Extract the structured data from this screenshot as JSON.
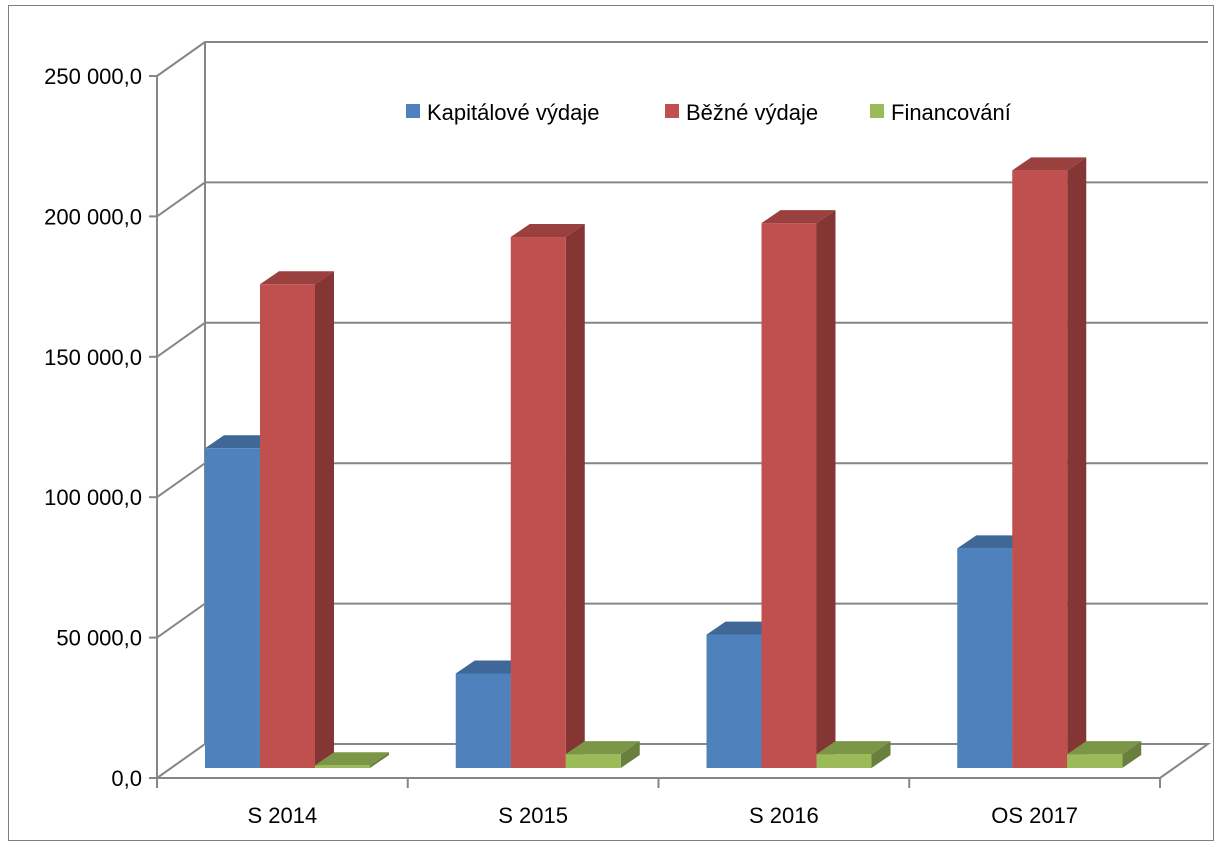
{
  "chart_data": {
    "type": "bar",
    "categories": [
      "S 2014",
      "S 2015",
      "S 2016",
      "OS 2017"
    ],
    "series": [
      {
        "name": "Kapitálové výdaje",
        "values": [
          115000,
          34000,
          48000,
          79000
        ],
        "color": "#4f81bd"
      },
      {
        "name": "Běžné výdaje",
        "values": [
          174000,
          191000,
          196000,
          215000
        ],
        "color": "#c0504d"
      },
      {
        "name": "Financování",
        "values": [
          1000,
          5000,
          5000,
          5000
        ],
        "color": "#9bbb59"
      }
    ],
    "y_ticks": [
      "0,0",
      "50 000,0",
      "100 000,0",
      "150 000,0",
      "200 000,0",
      "250 000,0"
    ],
    "ylim": [
      0,
      250000
    ],
    "grid": true,
    "legend": "top-center",
    "three_d": true
  }
}
